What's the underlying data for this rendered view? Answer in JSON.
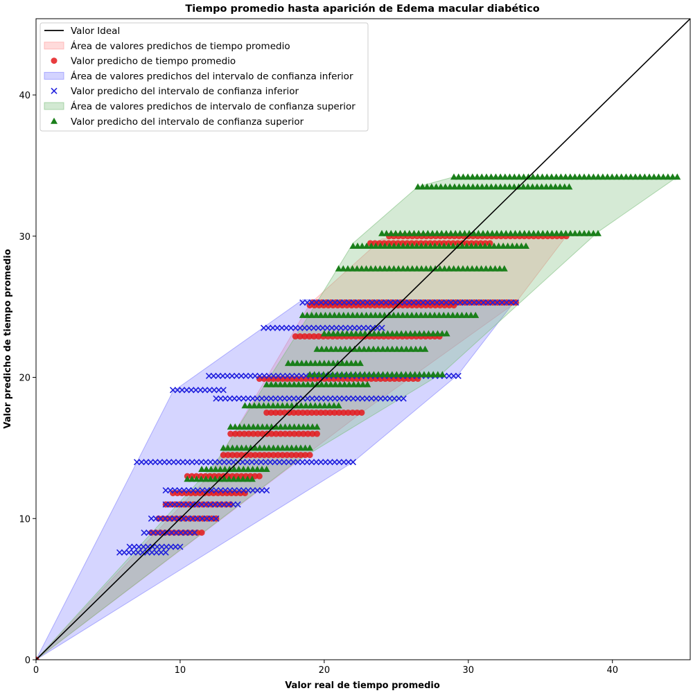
{
  "chart_data": {
    "type": "scatter",
    "title": "Tiempo promedio hasta aparición de Edema macular diabético",
    "xlabel": "Valor real de tiempo promedio",
    "ylabel": "Valor predicho de tiempo promedio",
    "xlim": [
      0,
      45.4
    ],
    "ylim": [
      0,
      45.4
    ],
    "xticks": [
      0,
      10,
      20,
      30,
      40
    ],
    "yticks": [
      0,
      10,
      20,
      30,
      40
    ],
    "grid": false,
    "legend_position": "top-left",
    "legend": [
      {
        "label": "Valor Ideal",
        "kind": "line",
        "color": "#000000"
      },
      {
        "label": "Área de valores predichos de tiempo promedio",
        "kind": "area",
        "color": "#ff9999"
      },
      {
        "label": "Valor predicho de tiempo promedio",
        "kind": "circle",
        "color": "#e41a1c"
      },
      {
        "label": "Área de valores predichos del intervalo de confianza inferior",
        "kind": "area",
        "color": "#8080ff"
      },
      {
        "label": "Valor predicho del intervalo de confianza inferior",
        "kind": "x",
        "color": "#1f1fdd"
      },
      {
        "label": "Área de valores predichos de intervalo de confianza superior",
        "kind": "area",
        "color": "#7fbf7f"
      },
      {
        "label": "Valor predicho del intervalo de confianza superior",
        "kind": "triangle",
        "color": "#1a7f1a"
      }
    ],
    "ideal_line": {
      "x": [
        0,
        45.4
      ],
      "y": [
        0,
        45.4
      ]
    },
    "series": [
      {
        "name": "Valor predicho de tiempo promedio",
        "color": "#e41a1c",
        "marker": "circle",
        "hull": [
          [
            0,
            0
          ],
          [
            12,
            13
          ],
          [
            19,
            25.2
          ],
          [
            24,
            29.8
          ],
          [
            33,
            30
          ],
          [
            36.8,
            30
          ],
          [
            33.3,
            25.3
          ],
          [
            22.6,
            17.5
          ],
          [
            0,
            0
          ]
        ],
        "bands": [
          {
            "y": 30.0,
            "x": [
              24.5,
              36.8
            ]
          },
          {
            "y": 29.5,
            "x": [
              23.2,
              31.5
            ]
          },
          {
            "y": 25.3,
            "x": [
              19.2,
              33.3
            ]
          },
          {
            "y": 25.1,
            "x": [
              19.0,
              29.0
            ]
          },
          {
            "y": 22.9,
            "x": [
              18.0,
              28.0
            ]
          },
          {
            "y": 19.9,
            "x": [
              15.5,
              26.5
            ]
          },
          {
            "y": 17.5,
            "x": [
              16.0,
              22.6
            ]
          },
          {
            "y": 16.0,
            "x": [
              13.5,
              19.5
            ]
          },
          {
            "y": 14.5,
            "x": [
              13.0,
              19.0
            ]
          },
          {
            "y": 13.0,
            "x": [
              10.5,
              15.5
            ]
          },
          {
            "y": 11.8,
            "x": [
              9.5,
              14.5
            ]
          },
          {
            "y": 11.0,
            "x": [
              9.0,
              13.5
            ]
          },
          {
            "y": 10.0,
            "x": [
              8.5,
              12.5
            ]
          },
          {
            "y": 9.0,
            "x": [
              8.0,
              11.5
            ]
          },
          {
            "y": 0.0,
            "x": [
              0.0,
              0.0
            ]
          }
        ]
      },
      {
        "name": "Valor predicho del intervalo de confianza inferior",
        "color": "#1f1fdd",
        "marker": "x",
        "hull": [
          [
            0,
            0
          ],
          [
            7,
            14
          ],
          [
            9.5,
            19
          ],
          [
            18.5,
            25.5
          ],
          [
            33.3,
            25.5
          ],
          [
            29.3,
            20.2
          ],
          [
            22,
            14
          ],
          [
            0,
            0
          ]
        ],
        "bands": [
          {
            "y": 25.3,
            "x": [
              18.5,
              33.3
            ]
          },
          {
            "y": 23.5,
            "x": [
              15.8,
              24.0
            ]
          },
          {
            "y": 20.1,
            "x": [
              12.0,
              29.3
            ]
          },
          {
            "y": 19.1,
            "x": [
              9.5,
              13.0
            ]
          },
          {
            "y": 18.5,
            "x": [
              12.5,
              25.5
            ]
          },
          {
            "y": 14.0,
            "x": [
              7.0,
              22.0
            ]
          },
          {
            "y": 12.0,
            "x": [
              9.0,
              16.0
            ]
          },
          {
            "y": 11.0,
            "x": [
              9.0,
              14.0
            ]
          },
          {
            "y": 10.0,
            "x": [
              8.0,
              12.5
            ]
          },
          {
            "y": 9.0,
            "x": [
              7.5,
              11.0
            ]
          },
          {
            "y": 8.0,
            "x": [
              6.5,
              10.0
            ]
          },
          {
            "y": 7.6,
            "x": [
              5.8,
              9.0
            ]
          }
        ]
      },
      {
        "name": "Valor predicho del intervalo de confianza superior",
        "color": "#1a7f1a",
        "marker": "triangle",
        "hull": [
          [
            0,
            0
          ],
          [
            12.5,
            14
          ],
          [
            19,
            24.5
          ],
          [
            22,
            29.5
          ],
          [
            26.5,
            33.5
          ],
          [
            29,
            34.2
          ],
          [
            44.5,
            34.2
          ],
          [
            39,
            30.3
          ],
          [
            28.2,
            20.3
          ],
          [
            18,
            14
          ],
          [
            0,
            0
          ]
        ],
        "bands": [
          {
            "y": 34.2,
            "x": [
              29.0,
              44.5
            ]
          },
          {
            "y": 33.5,
            "x": [
              26.5,
              37.0
            ]
          },
          {
            "y": 30.2,
            "x": [
              24.0,
              39.0
            ]
          },
          {
            "y": 29.3,
            "x": [
              22.0,
              34.0
            ]
          },
          {
            "y": 27.7,
            "x": [
              21.0,
              32.5
            ]
          },
          {
            "y": 24.4,
            "x": [
              18.5,
              30.5
            ]
          },
          {
            "y": 23.1,
            "x": [
              20.0,
              28.5
            ]
          },
          {
            "y": 22.0,
            "x": [
              19.5,
              27.0
            ]
          },
          {
            "y": 20.2,
            "x": [
              19.0,
              28.2
            ]
          },
          {
            "y": 19.5,
            "x": [
              16.0,
              23.0
            ]
          },
          {
            "y": 18.0,
            "x": [
              14.5,
              21.0
            ]
          },
          {
            "y": 16.5,
            "x": [
              13.5,
              19.5
            ]
          },
          {
            "y": 15.0,
            "x": [
              13.0,
              19.0
            ]
          },
          {
            "y": 13.5,
            "x": [
              11.5,
              16.0
            ]
          },
          {
            "y": 12.8,
            "x": [
              10.5,
              15.0
            ]
          },
          {
            "y": 21.0,
            "x": [
              17.5,
              22.5
            ]
          }
        ]
      }
    ]
  }
}
